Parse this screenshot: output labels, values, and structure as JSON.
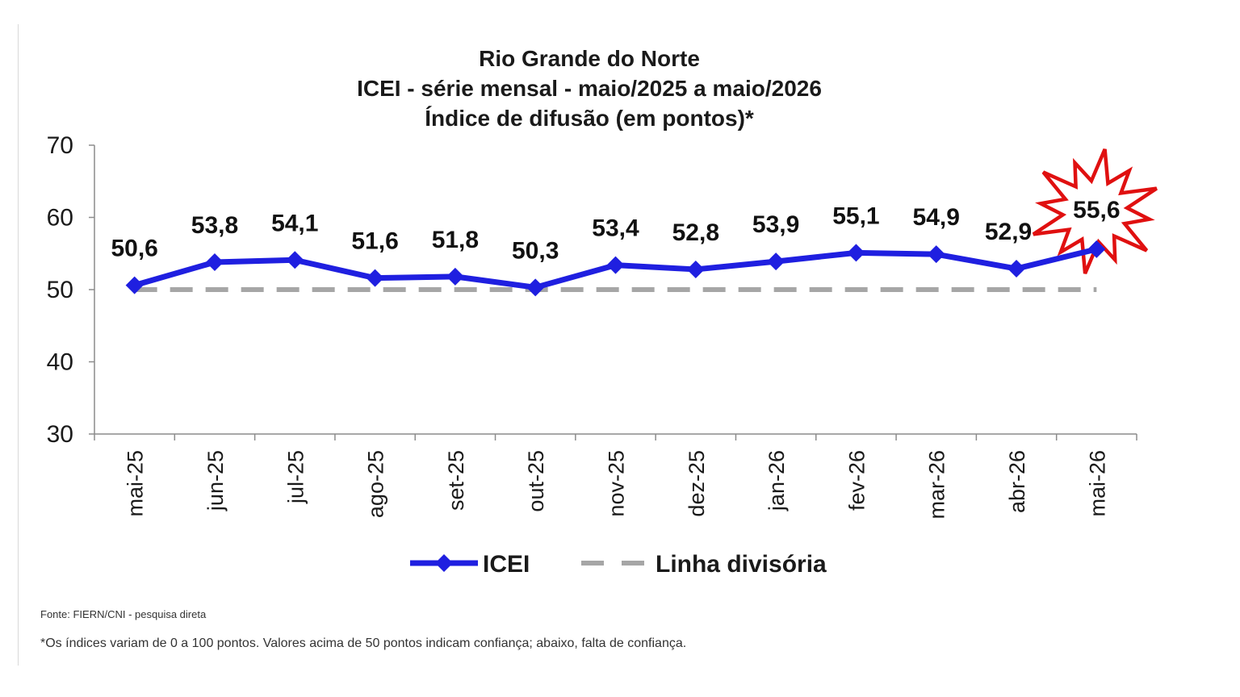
{
  "chart_data": {
    "type": "line",
    "title": [
      "Rio Grande do Norte",
      "ICEI - série mensal - maio/2025 a maio/2026",
      "Índice de difusão (em pontos)*"
    ],
    "categories": [
      "mai-25",
      "jun-25",
      "jul-25",
      "ago-25",
      "set-25",
      "out-25",
      "nov-25",
      "dez-25",
      "jan-26",
      "fev-26",
      "mar-26",
      "abr-26",
      "mai-26"
    ],
    "series": [
      {
        "name": "ICEI",
        "color": "#1f1fe0",
        "marker": "diamond",
        "values": [
          50.6,
          53.8,
          54.1,
          51.6,
          51.8,
          50.3,
          53.4,
          52.8,
          53.9,
          55.1,
          54.9,
          52.9,
          55.6
        ],
        "labels": [
          "50,6",
          "53,8",
          "54,1",
          "51,6",
          "51,8",
          "50,3",
          "53,4",
          "52,8",
          "53,9",
          "55,1",
          "54,9",
          "52,9",
          "55,6"
        ]
      },
      {
        "name": "Linha divisória",
        "color": "#a6a6a6",
        "style": "dashed",
        "values": [
          50,
          50,
          50,
          50,
          50,
          50,
          50,
          50,
          50,
          50,
          50,
          50,
          50
        ]
      }
    ],
    "ylim": [
      30,
      70
    ],
    "yticks": [
      "30",
      "40",
      "50",
      "60",
      "70"
    ],
    "grid": false,
    "legend_position": "bottom",
    "highlight": {
      "category": "mai-26",
      "shape": "starburst",
      "color": "#e01010"
    }
  },
  "notes": {
    "source": "Fonte: FIERN/CNI - pesquisa direta",
    "footnote": "*Os índices variam de 0 a 100 pontos. Valores acima de 50 pontos indicam confiança; abaixo, falta de confiança."
  }
}
